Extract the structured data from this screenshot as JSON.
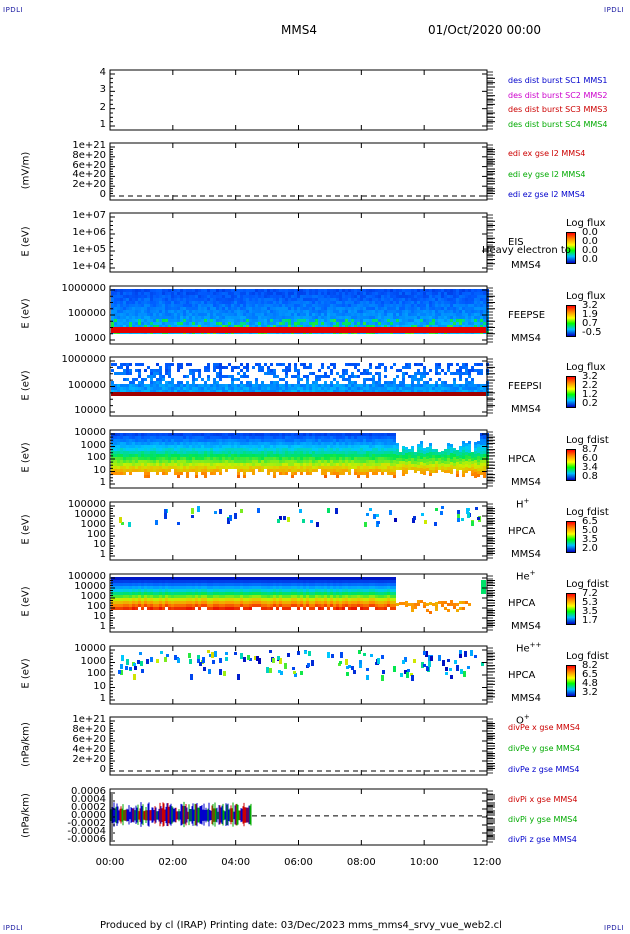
{
  "corners": {
    "top_left": "IPDLI",
    "top_right": "IPDLI",
    "bottom_left": "IPDLI",
    "bottom_right": "IPDLI"
  },
  "header": {
    "spacecraft": "MMS4",
    "date": "01/Oct/2020 00:00"
  },
  "footer": {
    "text": "Produced by cl (IRAP)    Printing date: 03/Dec/2023    mms_mms4_srvy_vue_web2.cl"
  },
  "chart_data": {
    "type": "multi-panel stack plot",
    "x_ticks": [
      "00:00",
      "02:00",
      "04:00",
      "06:00",
      "08:00",
      "10:00",
      "12:00"
    ],
    "panels": [
      {
        "id": "des",
        "ylabel": "",
        "yticks": [
          "4",
          "3",
          "2",
          "1"
        ],
        "legend": [
          {
            "text": "des dist burst SC1 MMS1",
            "color": "#0000cc"
          },
          {
            "text": "des dist burst SC2 MMS2",
            "color": "#cc00cc"
          },
          {
            "text": "des dist burst SC3 MMS3",
            "color": "#cc0000"
          },
          {
            "text": "des dist burst SC4 MMS4",
            "color": "#00aa00"
          }
        ]
      },
      {
        "id": "edi",
        "ylabel": "(mV/m)",
        "yticks": [
          "1e+21",
          "8e+20",
          "6e+20",
          "4e+20",
          "2e+20",
          "0"
        ],
        "legend": [
          {
            "text": "edi ex gse l2 MMS4",
            "color": "#cc0000"
          },
          {
            "text": "edi ey gse l2 MMS4",
            "color": "#00aa00"
          },
          {
            "text": "edi ez gse l2 MMS4",
            "color": "#0000cc"
          }
        ]
      },
      {
        "id": "eis",
        "ylabel": "E (eV)",
        "yticks": [
          "1e+07",
          "1e+06",
          "1e+05",
          "1e+04"
        ],
        "inst": [
          "EIS",
          "MMS4"
        ],
        "overlay": "Heavy electron to",
        "cbar_title": "Log flux",
        "cbar_vals": [
          "0.0",
          "0.0",
          "0.0",
          "0.0"
        ]
      },
      {
        "id": "feepse",
        "ylabel": "E (eV)",
        "yticks": [
          "1000000",
          "100000",
          "10000"
        ],
        "inst": [
          "FEEPSE",
          "MMS4"
        ],
        "cbar_title": "Log flux",
        "cbar_vals": [
          "3.2",
          "1.9",
          "0.7",
          "-0.5"
        ]
      },
      {
        "id": "feepsi",
        "ylabel": "E (eV)",
        "yticks": [
          "1000000",
          "100000",
          "10000"
        ],
        "inst": [
          "FEEPSI",
          "MMS4"
        ],
        "cbar_title": "Log flux",
        "cbar_vals": [
          "3.2",
          "2.2",
          "1.2",
          "0.2"
        ]
      },
      {
        "id": "hpca_h",
        "ylabel": "E (eV)",
        "yticks": [
          "10000",
          "1000",
          "100",
          "10",
          "1"
        ],
        "inst": [
          "HPCA",
          "MMS4"
        ],
        "species": "H",
        "charge": "+",
        "cbar_title": "Log fdist",
        "cbar_vals": [
          "8.7",
          "6.0",
          "3.4",
          "0.8"
        ]
      },
      {
        "id": "hpca_he",
        "ylabel": "E (eV)",
        "yticks": [
          "100000",
          "10000",
          "1000",
          "100",
          "10",
          "1"
        ],
        "inst": [
          "HPCA",
          "MMS4"
        ],
        "species": "He",
        "charge": "+",
        "cbar_title": "Log fdist",
        "cbar_vals": [
          "6.5",
          "5.0",
          "3.5",
          "2.0"
        ]
      },
      {
        "id": "hpca_hepp",
        "ylabel": "E (eV)",
        "yticks": [
          "100000",
          "10000",
          "1000",
          "100",
          "10",
          "1"
        ],
        "inst": [
          "HPCA",
          "MMS4"
        ],
        "species": "He",
        "charge": "++",
        "cbar_title": "Log fdist",
        "cbar_vals": [
          "7.2",
          "5.3",
          "3.5",
          "1.7"
        ]
      },
      {
        "id": "hpca_o",
        "ylabel": "E (eV)",
        "yticks": [
          "10000",
          "1000",
          "100",
          "10",
          "1"
        ],
        "inst": [
          "HPCA",
          "MMS4"
        ],
        "species": "O",
        "charge": "+",
        "cbar_title": "Log fdist",
        "cbar_vals": [
          "8.2",
          "6.5",
          "4.8",
          "3.2"
        ]
      },
      {
        "id": "divpe",
        "ylabel": "(nPa/km)",
        "yticks": [
          "1e+21",
          "8e+20",
          "6e+20",
          "4e+20",
          "2e+20",
          "0"
        ],
        "legend": [
          {
            "text": "divPe x gse MMS4",
            "color": "#cc0000"
          },
          {
            "text": "divPe y gse MMS4",
            "color": "#00aa00"
          },
          {
            "text": "divPe z gse MMS4",
            "color": "#0000cc"
          }
        ]
      },
      {
        "id": "divpi",
        "ylabel": "(nPa/km)",
        "yticks": [
          "0.0006",
          "0.0004",
          "0.0002",
          "0.0000",
          "-0.0002",
          "-0.0004",
          "-0.0006"
        ],
        "legend": [
          {
            "text": "divPi x gse MMS4",
            "color": "#cc0000"
          },
          {
            "text": "divPi y gse MMS4",
            "color": "#00aa00"
          },
          {
            "text": "divPi z gse MMS4",
            "color": "#0000cc"
          }
        ]
      }
    ]
  }
}
